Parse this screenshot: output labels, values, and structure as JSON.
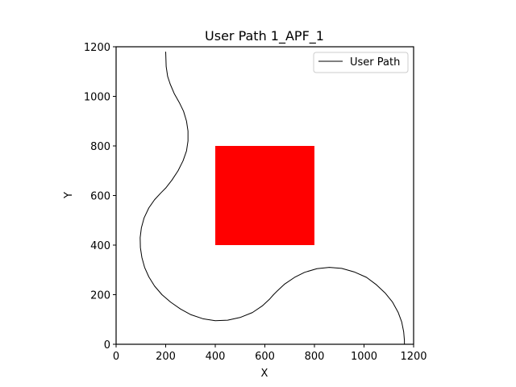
{
  "chart_data": {
    "type": "line",
    "title": "User Path 1_APF_1",
    "xlabel": "X",
    "ylabel": "Y",
    "xlim": [
      0,
      1200
    ],
    "ylim": [
      0,
      1200
    ],
    "xticks": [
      0,
      200,
      400,
      600,
      800,
      1000,
      1200
    ],
    "yticks": [
      0,
      200,
      400,
      600,
      800,
      1000,
      1200
    ],
    "grid": false,
    "legend": {
      "position": "top-right",
      "entries": [
        "User Path"
      ]
    },
    "obstacles": [
      {
        "x": [
          400,
          800
        ],
        "y": [
          400,
          800
        ],
        "color": "#ff0000"
      }
    ],
    "series": [
      {
        "name": "User Path",
        "color": "#000000",
        "points": [
          [
            200,
            1180
          ],
          [
            202,
            1120
          ],
          [
            208,
            1080
          ],
          [
            218,
            1050
          ],
          [
            235,
            1010
          ],
          [
            255,
            975
          ],
          [
            272,
            940
          ],
          [
            284,
            900
          ],
          [
            290,
            860
          ],
          [
            290,
            820
          ],
          [
            284,
            780
          ],
          [
            270,
            740
          ],
          [
            250,
            700
          ],
          [
            225,
            662
          ],
          [
            200,
            630
          ],
          [
            180,
            610
          ],
          [
            155,
            583
          ],
          [
            132,
            550
          ],
          [
            113,
            510
          ],
          [
            102,
            470
          ],
          [
            97,
            430
          ],
          [
            98,
            390
          ],
          [
            104,
            350
          ],
          [
            115,
            310
          ],
          [
            132,
            272
          ],
          [
            155,
            235
          ],
          [
            185,
            200
          ],
          [
            220,
            170
          ],
          [
            260,
            142
          ],
          [
            300,
            120
          ],
          [
            350,
            103
          ],
          [
            400,
            95
          ],
          [
            450,
            97
          ],
          [
            500,
            108
          ],
          [
            550,
            128
          ],
          [
            590,
            155
          ],
          [
            620,
            183
          ],
          [
            635,
            200
          ],
          [
            650,
            215
          ],
          [
            680,
            243
          ],
          [
            720,
            270
          ],
          [
            760,
            290
          ],
          [
            810,
            305
          ],
          [
            860,
            310
          ],
          [
            910,
            306
          ],
          [
            960,
            292
          ],
          [
            1010,
            270
          ],
          [
            1050,
            240
          ],
          [
            1085,
            207
          ],
          [
            1115,
            170
          ],
          [
            1138,
            128
          ],
          [
            1152,
            90
          ],
          [
            1160,
            50
          ],
          [
            1163,
            15
          ],
          [
            1163,
            0
          ]
        ]
      }
    ]
  }
}
